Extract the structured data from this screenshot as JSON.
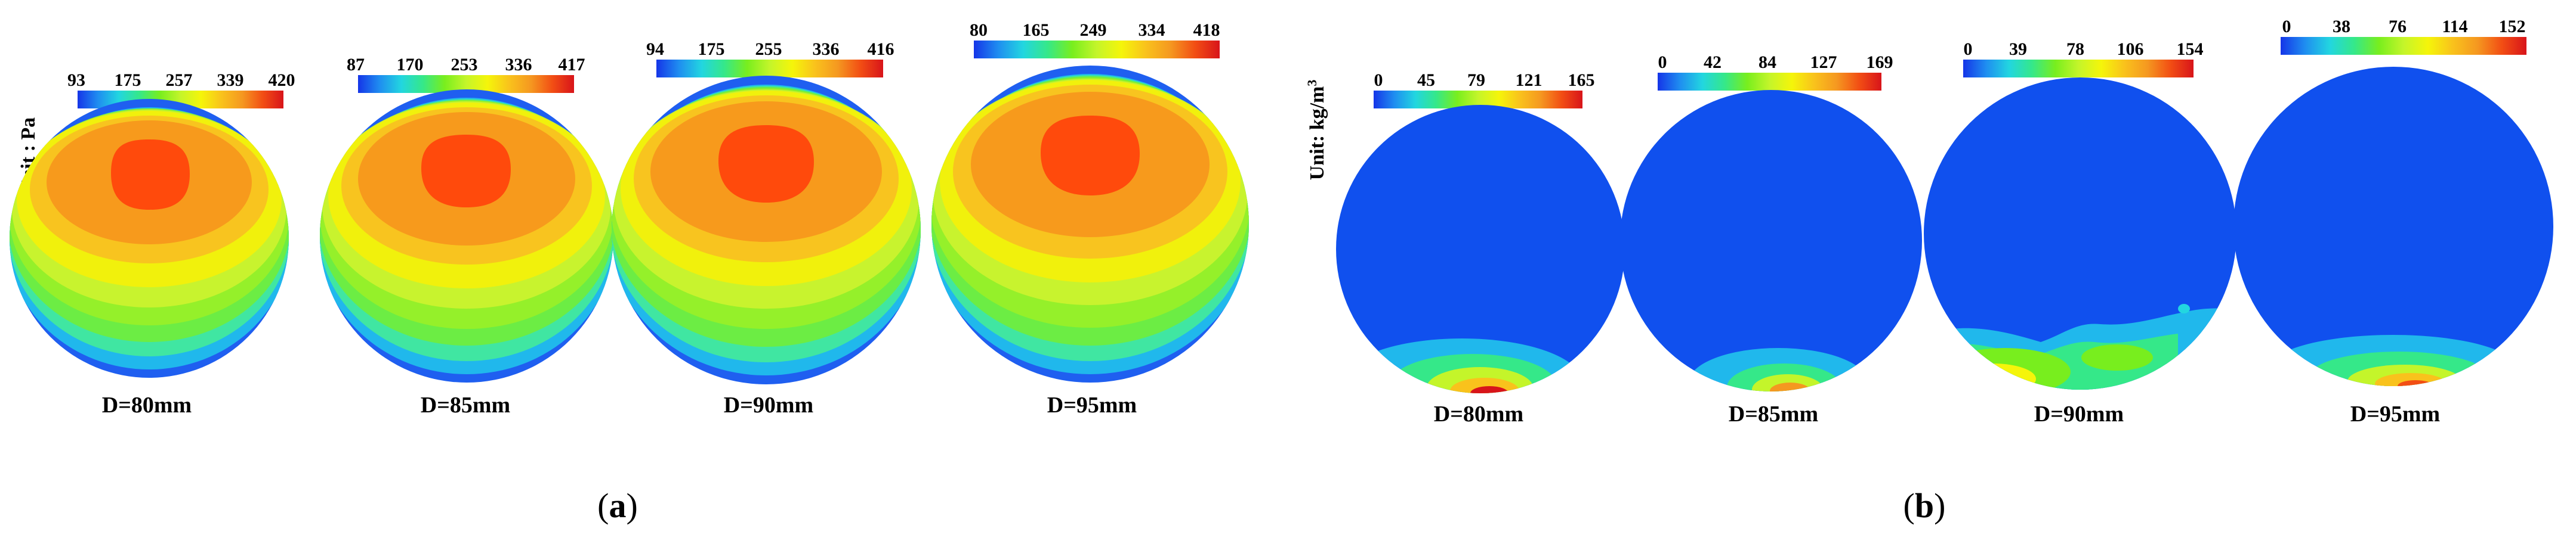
{
  "figure": {
    "panel_a": {
      "label": "(a)",
      "label_prefix": "(",
      "label_letter": "a",
      "label_suffix": ")",
      "unit_label": "Unit : Pa",
      "quantity": "pressure",
      "plots": [
        {
          "diameter_label": "D=80mm",
          "colorbar_ticks": [
            "93",
            "175",
            "257",
            "339",
            "420"
          ]
        },
        {
          "diameter_label": "D=85mm",
          "colorbar_ticks": [
            "87",
            "170",
            "253",
            "336",
            "417"
          ]
        },
        {
          "diameter_label": "D=90mm",
          "colorbar_ticks": [
            "94",
            "175",
            "255",
            "336",
            "416"
          ]
        },
        {
          "diameter_label": "D=95mm",
          "colorbar_ticks": [
            "80",
            "165",
            "249",
            "334",
            "418"
          ]
        }
      ]
    },
    "panel_b": {
      "label": "(b)",
      "label_prefix": "(",
      "label_letter": "b",
      "label_suffix": ")",
      "unit_label": "Unit: kg/m³",
      "unit_main": "Unit: kg/m",
      "unit_sup": "3",
      "quantity": "density",
      "plots": [
        {
          "diameter_label": "D=80mm",
          "colorbar_ticks": [
            "0",
            "45",
            "79",
            "121",
            "165"
          ]
        },
        {
          "diameter_label": "D=85mm",
          "colorbar_ticks": [
            "0",
            "42",
            "84",
            "127",
            "169"
          ]
        },
        {
          "diameter_label": "D=90mm",
          "colorbar_ticks": [
            "0",
            "39",
            "78",
            "106",
            "154"
          ]
        },
        {
          "diameter_label": "D=95mm",
          "colorbar_ticks": [
            "0",
            "38",
            "76",
            "114",
            "152"
          ]
        }
      ]
    },
    "colors": {
      "jet_stops": [
        "#1535e8",
        "#1f8ef0",
        "#22d6e0",
        "#35e889",
        "#78ee1e",
        "#c4f52a",
        "#f5f50a",
        "#f9c21c",
        "#f59820",
        "#f24e14",
        "#d8141a"
      ],
      "pressure_bands": [
        "#ff4a0c",
        "#f79a1c",
        "#f8c41f",
        "#f1f10c",
        "#c8f32e",
        "#95f02a",
        "#6ced44",
        "#40e6a2",
        "#20b8ec",
        "#1f5ff0"
      ],
      "density_background": "#1050ee"
    }
  }
}
